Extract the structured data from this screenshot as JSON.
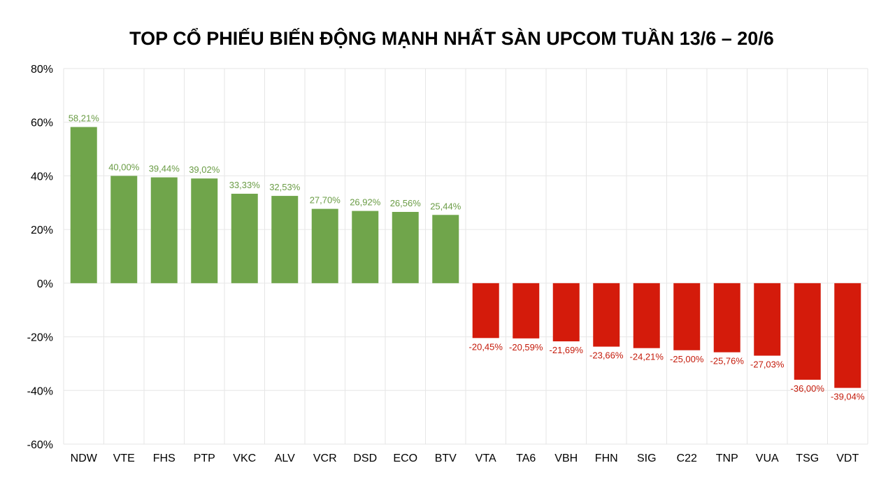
{
  "chart_data": {
    "type": "bar",
    "title": "TOP CỔ PHIẾU BIẾN ĐỘNG MẠNH NHẤT SÀN UPCOM TUẦN 13/6 – 20/6",
    "xlabel": "",
    "ylabel": "",
    "ylim": [
      -60,
      80
    ],
    "yticks": [
      "80%",
      "60%",
      "40%",
      "20%",
      "0%",
      "-20%",
      "-40%",
      "-60%"
    ],
    "ytick_values": [
      80,
      60,
      40,
      20,
      0,
      -20,
      -40,
      -60
    ],
    "grid": true,
    "categories": [
      "NDW",
      "VTE",
      "FHS",
      "PTP",
      "VKC",
      "ALV",
      "VCR",
      "DSD",
      "ECO",
      "BTV",
      "VTA",
      "TA6",
      "VBH",
      "FHN",
      "SIG",
      "C22",
      "TNP",
      "VUA",
      "TSG",
      "VDT"
    ],
    "values": [
      58.21,
      40.0,
      39.44,
      39.02,
      33.33,
      32.53,
      27.7,
      26.92,
      26.56,
      25.44,
      -20.45,
      -20.59,
      -21.69,
      -23.66,
      -24.21,
      -25.0,
      -25.76,
      -27.03,
      -36.0,
      -39.04
    ],
    "data_labels": [
      "58,21%",
      "40,00%",
      "39,44%",
      "39,02%",
      "33,33%",
      "32,53%",
      "27,70%",
      "26,92%",
      "26,56%",
      "25,44%",
      "-20,45%",
      "-20,59%",
      "-21,69%",
      "-23,66%",
      "-24,21%",
      "-25,00%",
      "-25,76%",
      "-27,03%",
      "-36,00%",
      "-39,04%"
    ],
    "colors": {
      "positive_bar": "#70a54b",
      "negative_bar": "#d41b0b",
      "positive_label": "#6a9c45",
      "negative_label": "#c41a0a",
      "grid": "#e6e6e6"
    }
  }
}
